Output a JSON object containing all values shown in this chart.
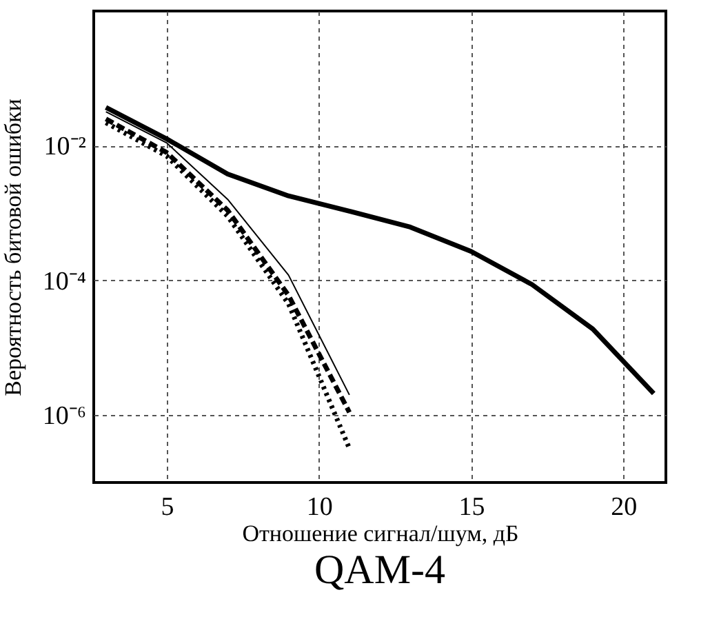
{
  "chart_data": {
    "type": "line",
    "title": "QAM-4",
    "xlabel": "Отношение сигнал/шум, дБ",
    "ylabel": "Вероятность битовой ошибки",
    "log": "y",
    "grid": true,
    "marker": "none",
    "xlim": [
      2.6,
      21.4
    ],
    "xticks": [
      5,
      10,
      15,
      20
    ],
    "ylim": [
      1e-07,
      1
    ],
    "yticks": [
      {
        "value": 0.01,
        "label": "10⁻²"
      },
      {
        "value": 0.0001,
        "label": "10⁻⁴"
      },
      {
        "value": 1e-06,
        "label": "10⁻⁶"
      }
    ],
    "series": [
      {
        "color": "#000000",
        "line_style": "solid",
        "x": [
          3,
          5,
          7,
          9,
          11,
          13,
          15,
          17,
          19,
          21
        ],
        "values": [
          0.037,
          0.0126,
          0.0038,
          0.0018,
          0.00107,
          0.00062,
          0.00027,
          8.7e-05,
          1.9e-05,
          2.1e-06
        ]
      },
      {
        "color": "#000000",
        "line_style": "solid",
        "x": [
          3,
          5,
          7,
          9,
          11
        ],
        "values": [
          0.032,
          0.011,
          0.0016,
          0.00012,
          2e-06
        ]
      },
      {
        "color": "#000000",
        "line_style": "dashed",
        "x": [
          3,
          5,
          7,
          9,
          11
        ],
        "values": [
          0.025,
          0.0079,
          0.0011,
          6e-05,
          1.1e-06
        ]
      },
      {
        "color": "#000000",
        "line_style": "dotted",
        "x": [
          3,
          5,
          7,
          9,
          11
        ],
        "values": [
          0.022,
          0.007,
          0.0009,
          4.5e-05,
          3.2e-07
        ]
      }
    ]
  }
}
